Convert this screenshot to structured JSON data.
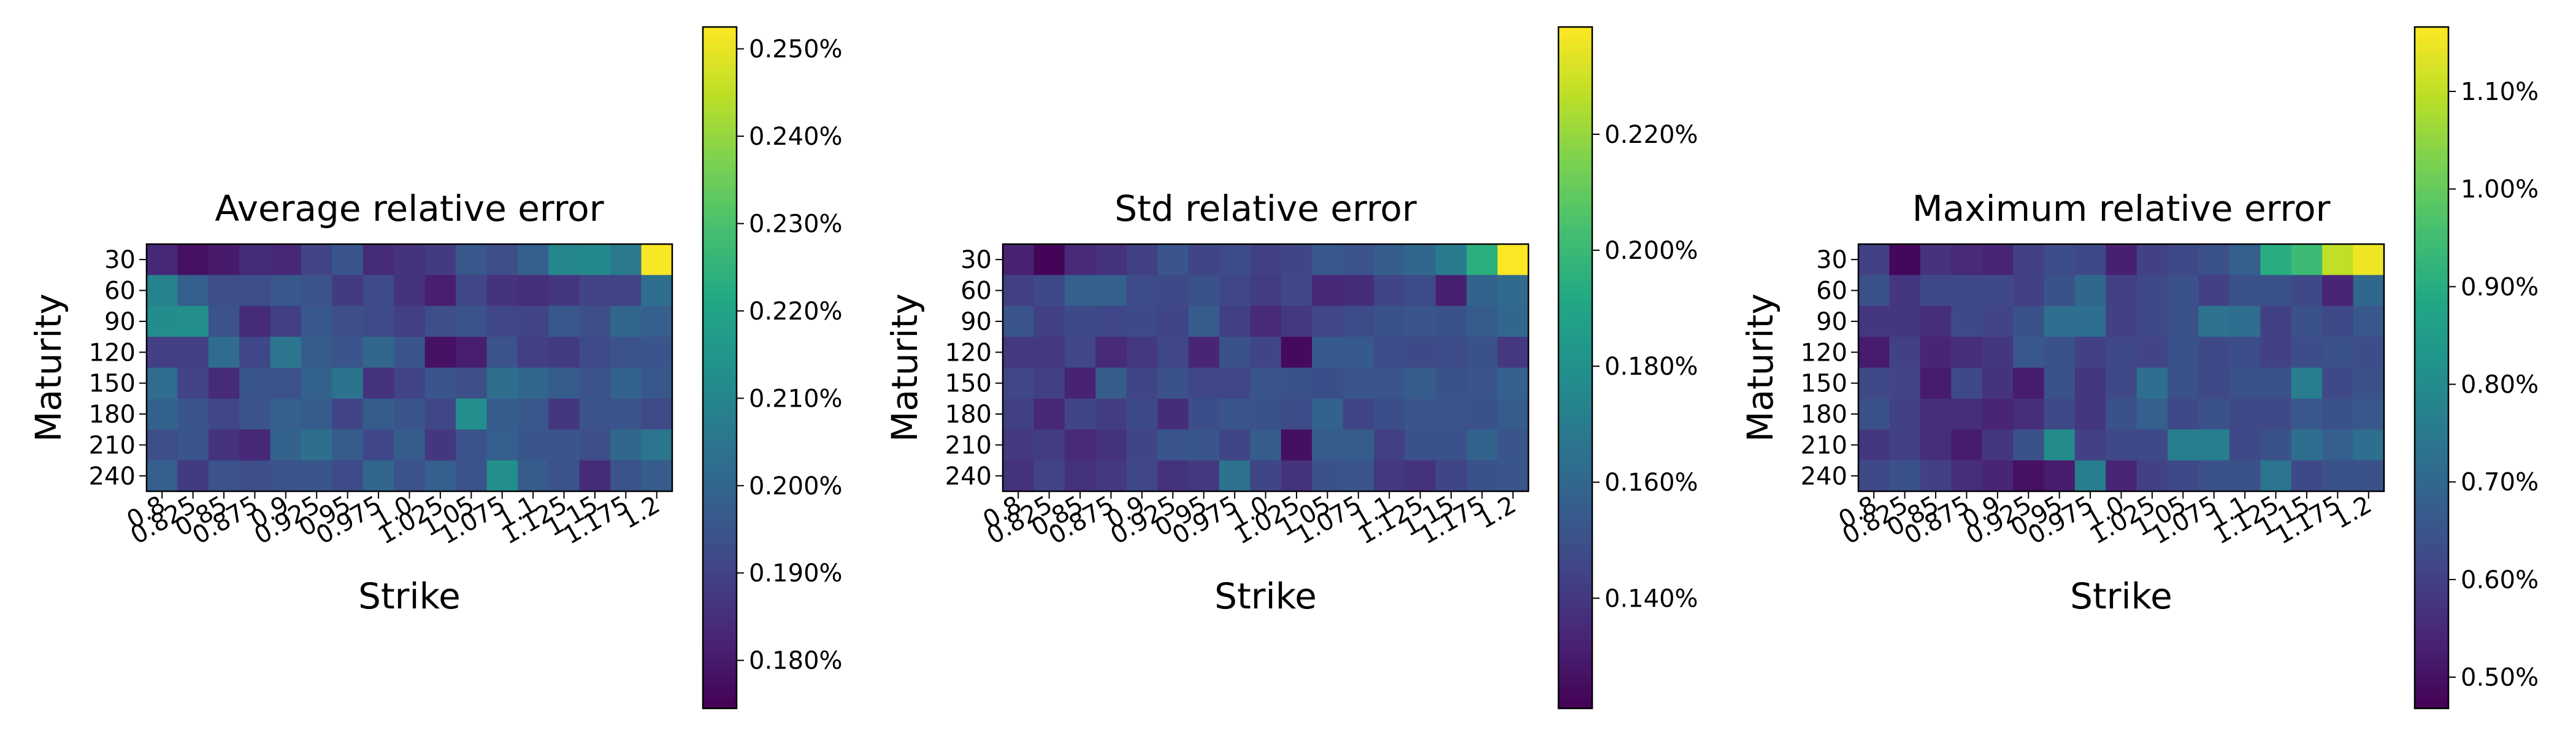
{
  "chart_data": [
    {
      "type": "heatmap",
      "title": "Average relative error",
      "xlabel": "Strike",
      "ylabel": "Maturity",
      "x_categories": [
        "0.8",
        "0.825",
        "0.85",
        "0.875",
        "0.9",
        "0.925",
        "0.95",
        "0.975",
        "1.0",
        "1.025",
        "1.05",
        "1.075",
        "1.1",
        "1.125",
        "1.15",
        "1.175",
        "1.2"
      ],
      "y_categories": [
        "30",
        "60",
        "90",
        "120",
        "150",
        "180",
        "210",
        "240"
      ],
      "colormap": "viridis",
      "vmin": 0.1745,
      "vmax": 0.2525,
      "colorbar_ticks": [
        0.18,
        0.19,
        0.2,
        0.21,
        0.22,
        0.23,
        0.24,
        0.25
      ],
      "colorbar_labels": [
        "0.180%",
        "0.190%",
        "0.200%",
        "0.210%",
        "0.220%",
        "0.230%",
        "0.240%",
        "0.250%"
      ],
      "values": [
        [
          0.183,
          0.178,
          0.18,
          0.184,
          0.183,
          0.19,
          0.195,
          0.184,
          0.186,
          0.188,
          0.196,
          0.193,
          0.198,
          0.21,
          0.211,
          0.206,
          0.252
        ],
        [
          0.209,
          0.198,
          0.193,
          0.193,
          0.196,
          0.194,
          0.188,
          0.192,
          0.186,
          0.181,
          0.191,
          0.186,
          0.185,
          0.187,
          0.19,
          0.19,
          0.203
        ],
        [
          0.212,
          0.213,
          0.194,
          0.184,
          0.189,
          0.196,
          0.193,
          0.192,
          0.189,
          0.193,
          0.194,
          0.191,
          0.19,
          0.196,
          0.193,
          0.2,
          0.198
        ],
        [
          0.189,
          0.189,
          0.202,
          0.191,
          0.205,
          0.197,
          0.195,
          0.2,
          0.195,
          0.178,
          0.181,
          0.194,
          0.189,
          0.188,
          0.192,
          0.194,
          0.195
        ],
        [
          0.202,
          0.19,
          0.184,
          0.195,
          0.194,
          0.199,
          0.204,
          0.186,
          0.19,
          0.195,
          0.193,
          0.203,
          0.2,
          0.197,
          0.194,
          0.199,
          0.196
        ],
        [
          0.199,
          0.195,
          0.191,
          0.194,
          0.198,
          0.197,
          0.19,
          0.197,
          0.195,
          0.191,
          0.213,
          0.197,
          0.196,
          0.187,
          0.194,
          0.195,
          0.192
        ],
        [
          0.193,
          0.195,
          0.186,
          0.183,
          0.199,
          0.203,
          0.197,
          0.191,
          0.197,
          0.187,
          0.194,
          0.198,
          0.195,
          0.195,
          0.193,
          0.2,
          0.205
        ],
        [
          0.198,
          0.188,
          0.194,
          0.193,
          0.194,
          0.195,
          0.192,
          0.2,
          0.194,
          0.198,
          0.194,
          0.213,
          0.197,
          0.194,
          0.184,
          0.194,
          0.197
        ]
      ]
    },
    {
      "type": "heatmap",
      "title": "Std relative error",
      "xlabel": "Strike",
      "ylabel": "Maturity",
      "x_categories": [
        "0.8",
        "0.825",
        "0.85",
        "0.875",
        "0.9",
        "0.925",
        "0.95",
        "0.975",
        "1.0",
        "1.025",
        "1.05",
        "1.075",
        "1.1",
        "1.125",
        "1.15",
        "1.175",
        "1.2"
      ],
      "y_categories": [
        "30",
        "60",
        "90",
        "120",
        "150",
        "180",
        "210",
        "240"
      ],
      "colormap": "viridis",
      "vmin": 0.121,
      "vmax": 0.2385,
      "colorbar_ticks": [
        0.14,
        0.16,
        0.18,
        0.2,
        0.22
      ],
      "colorbar_labels": [
        "0.140%",
        "0.160%",
        "0.180%",
        "0.200%",
        "0.220%"
      ],
      "values": [
        [
          0.132,
          0.122,
          0.135,
          0.138,
          0.143,
          0.152,
          0.145,
          0.148,
          0.143,
          0.145,
          0.153,
          0.151,
          0.156,
          0.16,
          0.17,
          0.195,
          0.238
        ],
        [
          0.143,
          0.147,
          0.157,
          0.157,
          0.148,
          0.147,
          0.15,
          0.146,
          0.142,
          0.146,
          0.134,
          0.136,
          0.145,
          0.148,
          0.131,
          0.158,
          0.162
        ],
        [
          0.152,
          0.143,
          0.147,
          0.146,
          0.147,
          0.145,
          0.155,
          0.143,
          0.135,
          0.14,
          0.146,
          0.148,
          0.15,
          0.152,
          0.15,
          0.155,
          0.16
        ],
        [
          0.14,
          0.14,
          0.146,
          0.135,
          0.14,
          0.146,
          0.133,
          0.15,
          0.145,
          0.124,
          0.154,
          0.154,
          0.148,
          0.147,
          0.148,
          0.15,
          0.14
        ],
        [
          0.146,
          0.143,
          0.132,
          0.155,
          0.145,
          0.15,
          0.146,
          0.146,
          0.152,
          0.15,
          0.149,
          0.152,
          0.152,
          0.155,
          0.15,
          0.152,
          0.157
        ],
        [
          0.143,
          0.134,
          0.145,
          0.142,
          0.147,
          0.136,
          0.149,
          0.152,
          0.15,
          0.148,
          0.158,
          0.145,
          0.149,
          0.152,
          0.151,
          0.15,
          0.155
        ],
        [
          0.14,
          0.142,
          0.135,
          0.138,
          0.145,
          0.152,
          0.152,
          0.145,
          0.155,
          0.126,
          0.155,
          0.155,
          0.143,
          0.15,
          0.15,
          0.158,
          0.152
        ],
        [
          0.138,
          0.144,
          0.138,
          0.14,
          0.146,
          0.138,
          0.14,
          0.165,
          0.145,
          0.138,
          0.15,
          0.152,
          0.14,
          0.138,
          0.145,
          0.15,
          0.152
        ]
      ]
    },
    {
      "type": "heatmap",
      "title": "Maximum relative error",
      "xlabel": "Strike",
      "ylabel": "Maturity",
      "x_categories": [
        "0.8",
        "0.825",
        "0.85",
        "0.875",
        "0.9",
        "0.925",
        "0.95",
        "0.975",
        "1.0",
        "1.025",
        "1.05",
        "1.075",
        "1.1",
        "1.125",
        "1.15",
        "1.175",
        "1.2"
      ],
      "y_categories": [
        "30",
        "60",
        "90",
        "120",
        "150",
        "180",
        "210",
        "240"
      ],
      "colormap": "viridis",
      "vmin": 0.468,
      "vmax": 1.166,
      "colorbar_ticks": [
        0.5,
        0.6,
        0.7,
        0.8,
        0.9,
        1.0,
        1.1
      ],
      "colorbar_labels": [
        "0.50%",
        "0.60%",
        "0.70%",
        "0.80%",
        "0.90%",
        "1.00%",
        "1.10%"
      ],
      "values": [
        [
          0.6,
          0.48,
          0.57,
          0.55,
          0.54,
          0.6,
          0.63,
          0.62,
          0.53,
          0.6,
          0.62,
          0.64,
          0.68,
          0.9,
          0.94,
          1.1,
          1.15
        ],
        [
          0.64,
          0.58,
          0.62,
          0.62,
          0.62,
          0.6,
          0.64,
          0.7,
          0.6,
          0.62,
          0.64,
          0.6,
          0.64,
          0.64,
          0.62,
          0.54,
          0.7
        ],
        [
          0.58,
          0.58,
          0.56,
          0.62,
          0.61,
          0.64,
          0.72,
          0.72,
          0.6,
          0.62,
          0.64,
          0.73,
          0.72,
          0.6,
          0.64,
          0.62,
          0.66
        ],
        [
          0.52,
          0.6,
          0.54,
          0.56,
          0.58,
          0.66,
          0.64,
          0.6,
          0.62,
          0.61,
          0.64,
          0.62,
          0.63,
          0.6,
          0.63,
          0.64,
          0.63
        ],
        [
          0.62,
          0.61,
          0.52,
          0.62,
          0.57,
          0.52,
          0.64,
          0.58,
          0.62,
          0.72,
          0.64,
          0.62,
          0.64,
          0.64,
          0.76,
          0.62,
          0.64
        ],
        [
          0.64,
          0.6,
          0.56,
          0.56,
          0.54,
          0.56,
          0.62,
          0.58,
          0.64,
          0.68,
          0.62,
          0.64,
          0.62,
          0.62,
          0.66,
          0.64,
          0.66
        ],
        [
          0.58,
          0.6,
          0.56,
          0.52,
          0.58,
          0.64,
          0.8,
          0.6,
          0.62,
          0.62,
          0.76,
          0.76,
          0.62,
          0.64,
          0.72,
          0.68,
          0.72
        ],
        [
          0.62,
          0.64,
          0.6,
          0.56,
          0.54,
          0.5,
          0.52,
          0.76,
          0.54,
          0.6,
          0.62,
          0.64,
          0.64,
          0.74,
          0.62,
          0.64,
          0.64
        ]
      ]
    }
  ]
}
